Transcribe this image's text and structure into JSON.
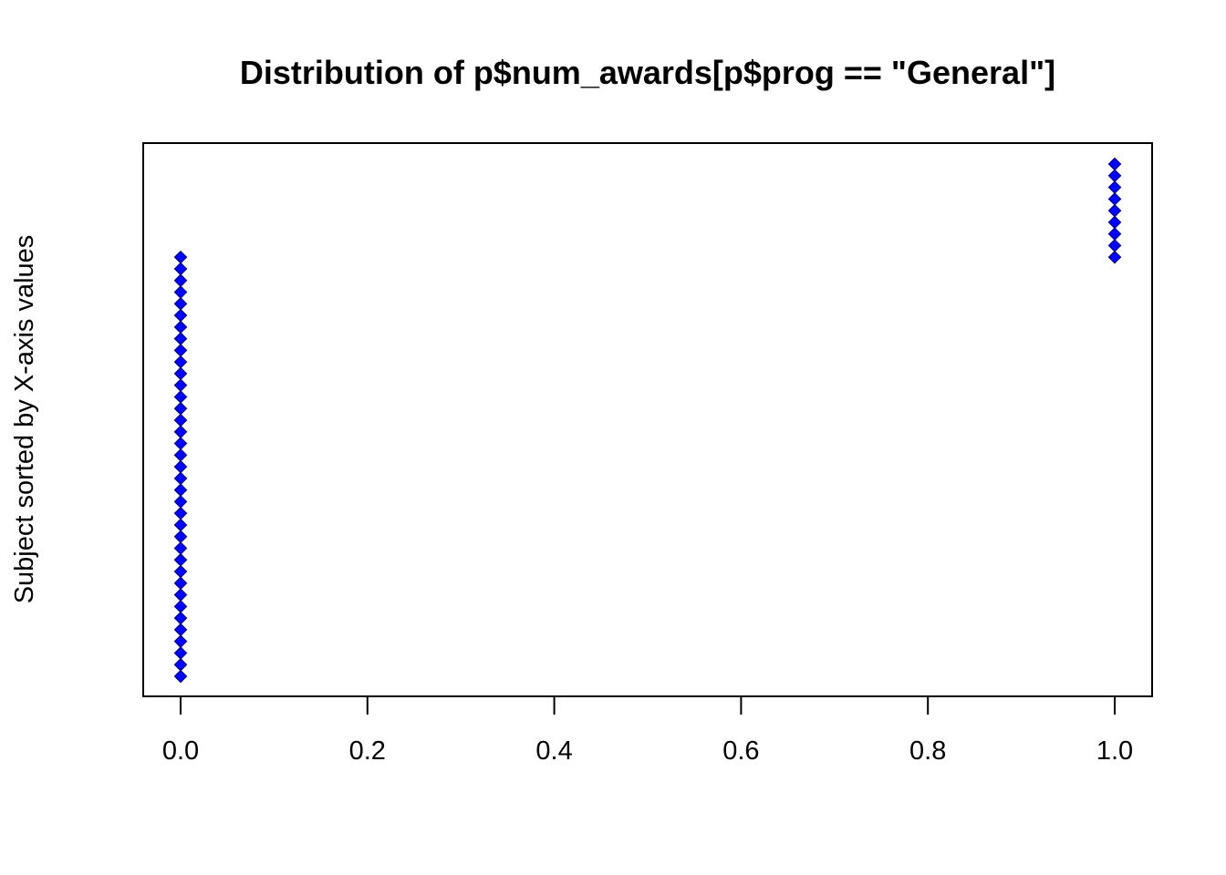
{
  "chart_data": {
    "type": "scatter",
    "title": "Distribution of p$num_awards[p$prog == \"General\"]",
    "xlabel": "",
    "ylabel": "Subject sorted by X-axis values",
    "xlim": [
      -0.04,
      1.04
    ],
    "ylim": [
      1,
      45
    ],
    "x_ticks": [
      "0.0",
      "0.2",
      "0.4",
      "0.6",
      "0.8",
      "1.0"
    ],
    "x_tick_values": [
      0,
      0.2,
      0.4,
      0.6,
      0.8,
      1.0
    ],
    "y_ticks_shown": false,
    "grid": false,
    "marker": "diamond",
    "marker_fill": "#0000ff",
    "marker_edge": "#00008b",
    "series": [
      {
        "values_x": [
          0,
          0,
          0,
          0,
          0,
          0,
          0,
          0,
          0,
          0,
          0,
          0,
          0,
          0,
          0,
          0,
          0,
          0,
          0,
          0,
          0,
          0,
          0,
          0,
          0,
          0,
          0,
          0,
          0,
          0,
          0,
          0,
          0,
          0,
          0,
          0,
          0,
          1,
          1,
          1,
          1,
          1,
          1,
          1,
          1,
          1
        ],
        "values_y": [
          1,
          2,
          3,
          4,
          5,
          6,
          7,
          8,
          9,
          10,
          11,
          12,
          13,
          14,
          15,
          16,
          17,
          18,
          19,
          20,
          21,
          22,
          23,
          24,
          25,
          26,
          27,
          28,
          29,
          30,
          31,
          32,
          33,
          34,
          35,
          36,
          37,
          37,
          38,
          39,
          40,
          41,
          42,
          43,
          44,
          45
        ]
      }
    ]
  }
}
